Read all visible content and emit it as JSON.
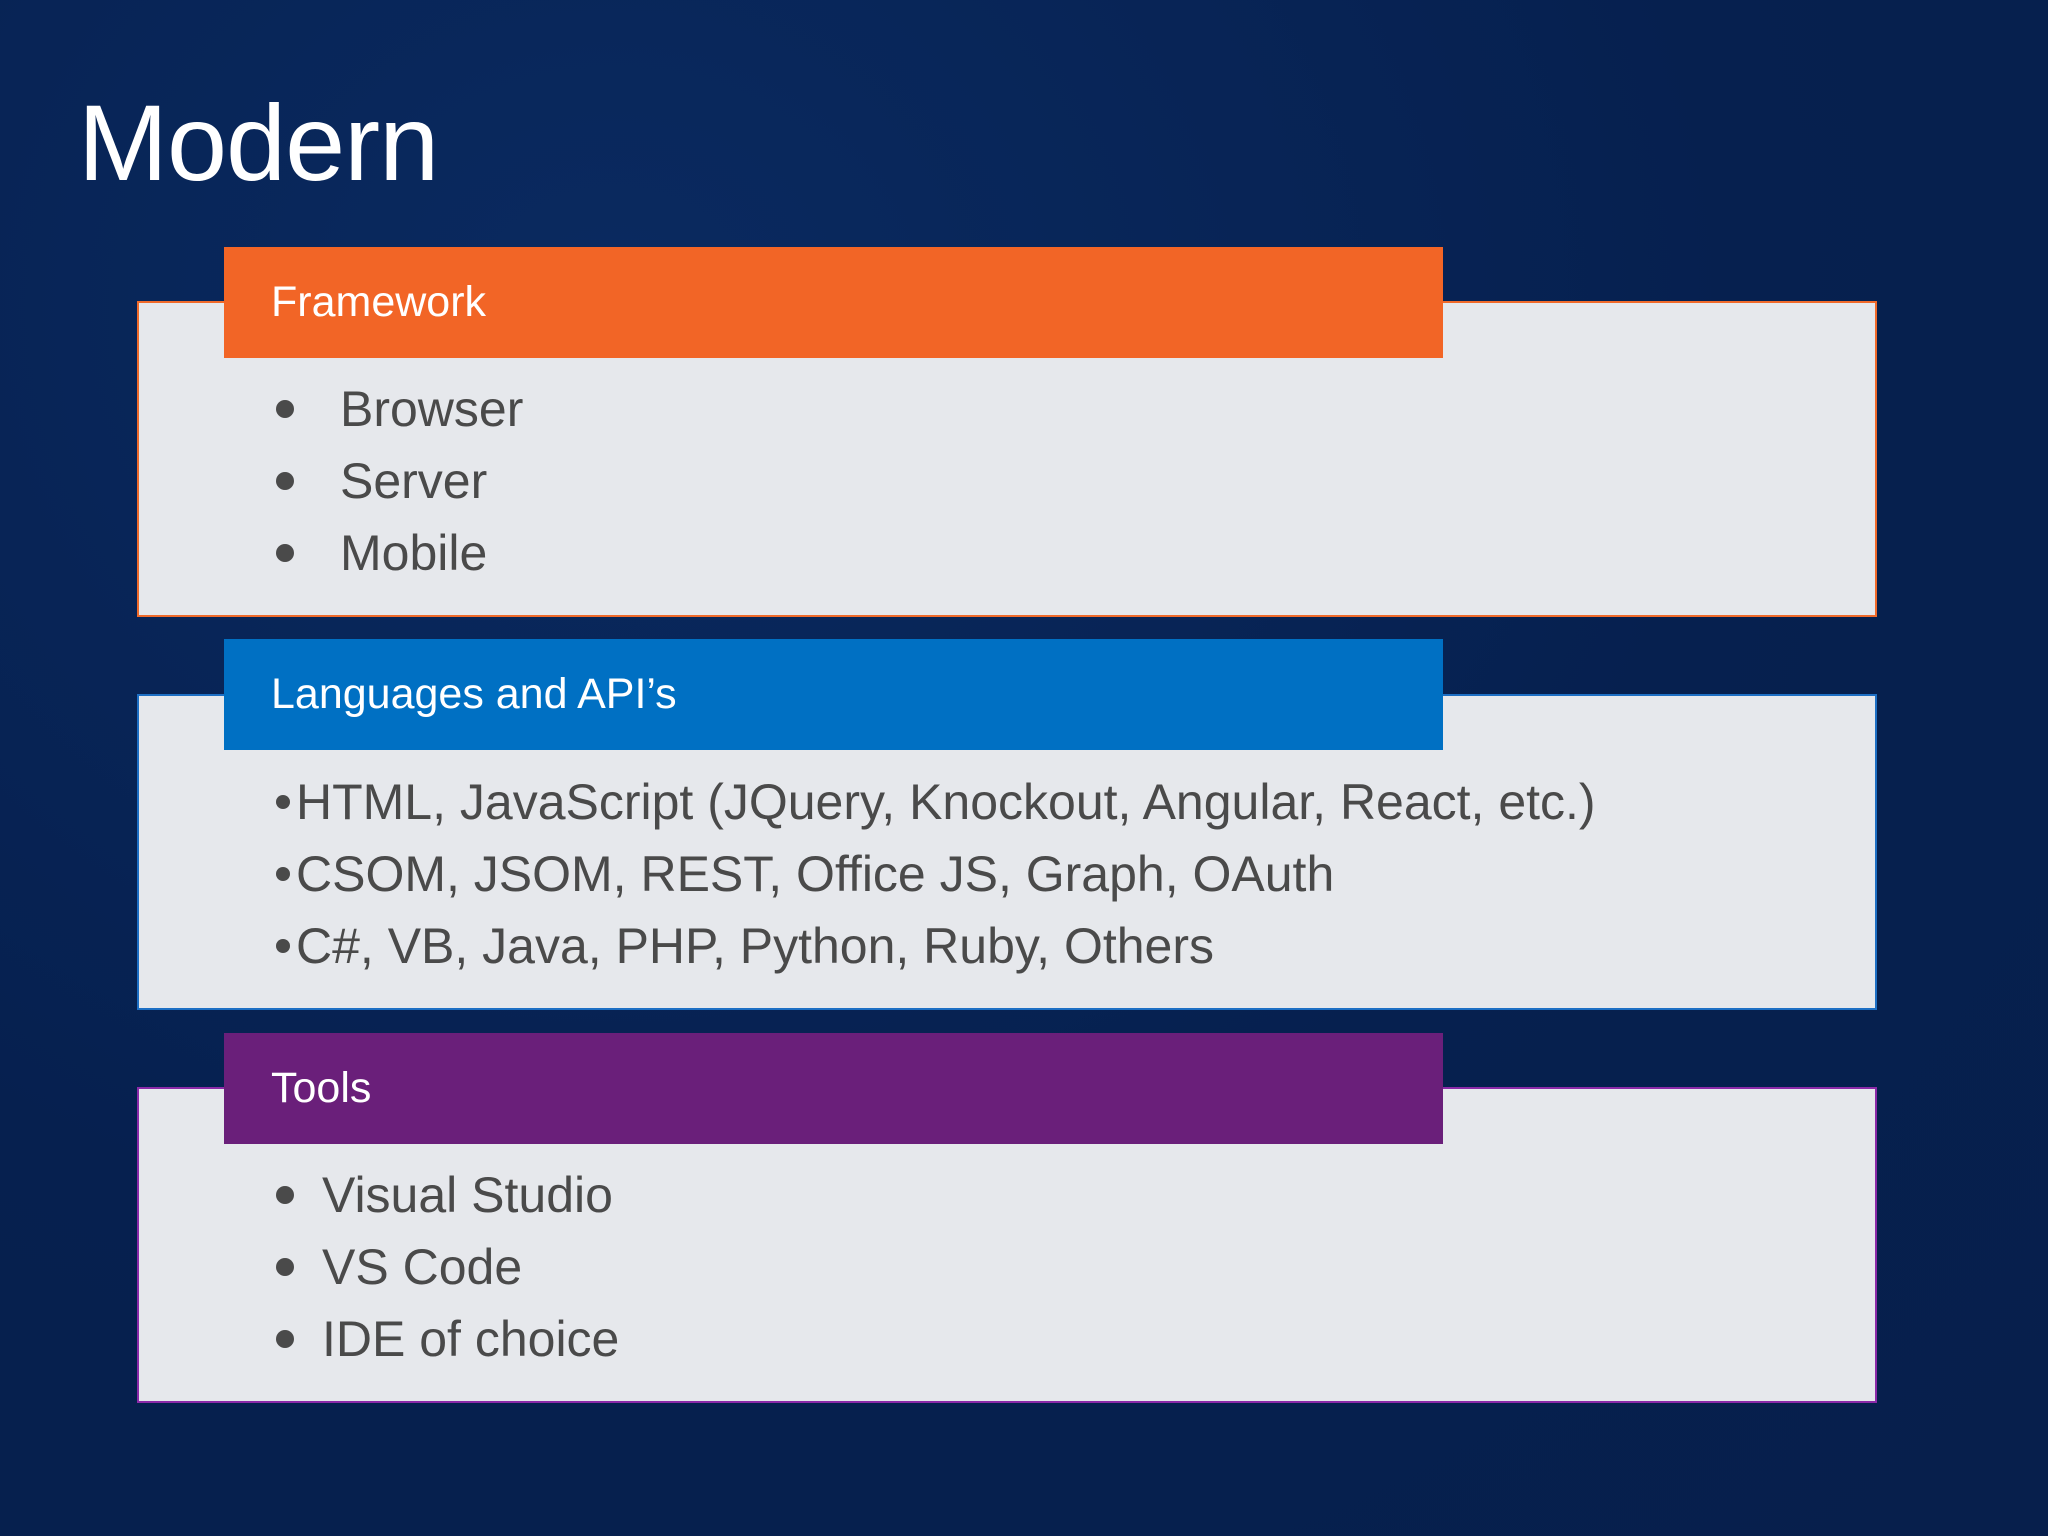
{
  "slide": {
    "title": "Modern"
  },
  "sections": {
    "framework": {
      "header": "Framework",
      "items": [
        "Browser",
        "Server",
        "Mobile"
      ],
      "accent_color": "#f26526"
    },
    "languages": {
      "header": "Languages and API’s",
      "items": [
        "HTML, JavaScript (JQuery, Knockout, Angular, React, etc.)",
        "CSOM, JSOM, REST, Office JS, Graph, OAuth",
        "C#, VB, Java, PHP, Python, Ruby, Others"
      ],
      "accent_color": "#0070c3"
    },
    "tools": {
      "header": "Tools",
      "items": [
        "Visual Studio",
        "VS Code",
        "IDE of choice"
      ],
      "accent_color": "#6a1f7a"
    }
  },
  "colors": {
    "background": "#06204f",
    "card_fill": "#e6e8ec",
    "body_text": "#4a4a4a"
  }
}
